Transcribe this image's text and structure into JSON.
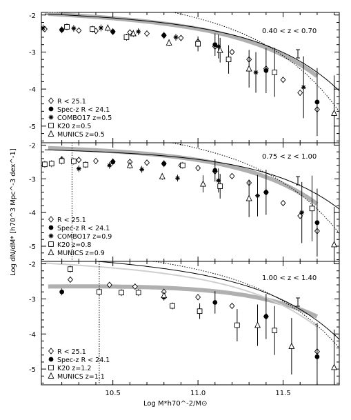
{
  "chart_data": {
    "type": "scatter",
    "xlabel": "Log M*h70^-2/M⊙",
    "ylabel": "Log dN/dM* [h70^3 Mpc^-3 dex^-1]",
    "x_ticks": [
      "10.5",
      "11.0",
      "11.5"
    ],
    "y_ticks": [
      "-2",
      "-3",
      "-4",
      "-5"
    ],
    "xlim": [
      10.08,
      11.83
    ],
    "panels": [
      {
        "redshift_label": "0.40 < z < 0.70",
        "ylim": [
          -5.45,
          -1.93
        ],
        "legend": [
          "R < 25.1",
          "Spec-z R < 24.1",
          "COMBO17 z=0.5",
          "K20 z=0.5",
          "MUNICS z=0.5"
        ],
        "completeness_x": null,
        "series": [
          {
            "name": "R < 25.1",
            "marker": "diamond",
            "x": [
              10.1,
              10.2,
              10.3,
              10.4,
              10.5,
              10.6,
              10.7,
              10.8,
              10.9,
              11.0,
              11.1,
              11.2,
              11.3,
              11.4,
              11.5,
              11.6,
              11.7
            ],
            "y": [
              -2.38,
              -2.4,
              -2.42,
              -2.43,
              -2.45,
              -2.47,
              -2.5,
              -2.55,
              -2.62,
              -2.72,
              -2.85,
              -3.0,
              -3.2,
              -3.45,
              -3.75,
              -4.1,
              -4.55
            ]
          },
          {
            "name": "Spec-z R < 24.1",
            "marker": "circle",
            "x": [
              10.2,
              10.5,
              10.8,
              11.1,
              11.4,
              11.7
            ],
            "y": [
              -2.4,
              -2.45,
              -2.55,
              -2.8,
              -3.5,
              -4.35
            ]
          },
          {
            "name": "COMBO17 z=0.5",
            "marker": "asterisk",
            "x": [
              10.09,
              10.27,
              10.43,
              10.65,
              10.87,
              11.12,
              11.34,
              11.62
            ],
            "y": [
              -2.35,
              -2.36,
              -2.35,
              -2.45,
              -2.6,
              -2.85,
              -3.55,
              -3.95
            ]
          },
          {
            "name": "K20 z=0.5",
            "marker": "square",
            "x": [
              10.23,
              10.38,
              10.58,
              11.0,
              11.18,
              11.45
            ],
            "y": [
              -2.32,
              -2.38,
              -2.6,
              -2.78,
              -3.2,
              -3.55
            ]
          },
          {
            "name": "MUNICS z=0.5",
            "marker": "triangle",
            "x": [
              10.47,
              10.62,
              10.83,
              11.13,
              11.3,
              11.8
            ],
            "y": [
              -2.35,
              -2.5,
              -2.75,
              -2.95,
              -3.45,
              -4.65
            ]
          }
        ]
      },
      {
        "redshift_label": "0.75 < z < 1.00",
        "ylim": [
          -5.45,
          -1.93
        ],
        "legend": [
          "R < 25.1",
          "Spec-z R < 24.1",
          "COMBO17 z=0.9",
          "K20 z=0.8",
          "MUNICS z=0.9"
        ],
        "completeness_x": 10.26,
        "series": [
          {
            "name": "R < 25.1",
            "marker": "diamond",
            "x": [
              10.2,
              10.3,
              10.4,
              10.5,
              10.6,
              10.7,
              10.8,
              10.9,
              11.0,
              11.1,
              11.2,
              11.3,
              11.4,
              11.5,
              11.6,
              11.7
            ],
            "y": [
              -2.42,
              -2.44,
              -2.47,
              -2.49,
              -2.5,
              -2.52,
              -2.55,
              -2.6,
              -2.68,
              -2.78,
              -2.92,
              -3.12,
              -3.4,
              -3.72,
              -4.1,
              -4.55
            ]
          },
          {
            "name": "Spec-z R < 24.1",
            "marker": "circle",
            "x": [
              10.2,
              10.5,
              10.8,
              11.1,
              11.4,
              11.7
            ],
            "y": [
              -2.45,
              -2.5,
              -2.55,
              -2.75,
              -3.4,
              -4.3
            ]
          },
          {
            "name": "COMBO17 z=0.9",
            "marker": "asterisk",
            "x": [
              10.3,
              10.48,
              10.67,
              10.88,
              11.12,
              11.35,
              11.61
            ],
            "y": [
              -2.7,
              -2.6,
              -2.72,
              -2.98,
              -3.05,
              -3.5,
              -4.0
            ]
          },
          {
            "name": "K20 z=0.8",
            "marker": "square",
            "x": [
              10.1,
              10.14,
              10.2,
              10.27,
              10.34,
              10.91,
              11.13,
              11.67
            ],
            "y": [
              -2.57,
              -2.55,
              -2.47,
              -2.48,
              -2.58,
              -2.6,
              -3.22,
              -3.88
            ]
          },
          {
            "name": "MUNICS z=0.9",
            "marker": "triangle",
            "x": [
              10.6,
              10.79,
              11.03,
              11.3,
              11.8
            ],
            "y": [
              -2.6,
              -2.93,
              -3.15,
              -3.58,
              -4.95
            ]
          }
        ]
      },
      {
        "redshift_label": "1.00 < z < 1.40",
        "ylim": [
          -5.45,
          -1.93
        ],
        "legend": [
          "R < 25.1",
          "Spec-z R < 24.1",
          "K20 z=1.2",
          "MUNICS z=1.1"
        ],
        "completeness_x": 10.42,
        "series": [
          {
            "name": "R < 25.1",
            "marker": "diamond",
            "x": [
              10.25,
              10.48,
              10.63,
              10.8,
              11.0,
              11.2,
              11.4,
              11.7
            ],
            "y": [
              -2.45,
              -2.6,
              -2.65,
              -2.8,
              -2.95,
              -3.2,
              -3.5,
              -4.5
            ]
          },
          {
            "name": "Spec-z R < 24.1",
            "marker": "circle",
            "x": [
              10.2,
              10.8,
              11.1,
              11.4,
              11.7
            ],
            "y": [
              -2.8,
              -2.95,
              -3.1,
              -3.5,
              -4.65
            ]
          },
          {
            "name": "K20 z=1.2",
            "marker": "square",
            "x": [
              10.25,
              10.42,
              10.55,
              10.65,
              10.85,
              11.01,
              11.23,
              11.45
            ],
            "y": [
              -2.15,
              -2.8,
              -2.82,
              -2.82,
              -3.2,
              -3.35,
              -3.75,
              -3.9
            ]
          },
          {
            "name": "MUNICS z=1.1",
            "marker": "triangle",
            "x": [
              10.8,
              11.35,
              11.55,
              11.8
            ],
            "y": [
              -2.9,
              -3.75,
              -4.35,
              -4.95
            ]
          }
        ]
      }
    ]
  }
}
